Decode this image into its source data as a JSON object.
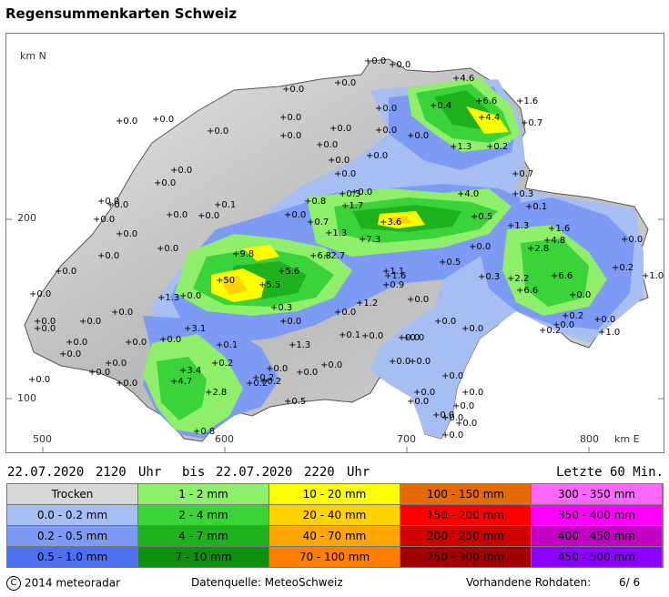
{
  "title": "Regensummenkarten Schweiz",
  "axis": {
    "km_n": "km N",
    "km_e": "km E",
    "y_ticks": [
      "200",
      "100"
    ],
    "x_ticks": [
      "500",
      "600",
      "700",
      "800"
    ]
  },
  "stations": [
    {
      "v": "+0.0"
    },
    {
      "v": "+0.0"
    },
    {
      "v": "+4.6"
    },
    {
      "v": "+0.0"
    },
    {
      "v": "+0.0"
    },
    {
      "v": "+6.6"
    },
    {
      "v": "+1.6"
    },
    {
      "v": "+0.0"
    },
    {
      "v": "+0.0"
    },
    {
      "v": "+0.0"
    },
    {
      "v": "+0.0"
    },
    {
      "v": "+0.4"
    },
    {
      "v": "+4.4"
    },
    {
      "v": "+0.7"
    },
    {
      "v": "+0.0"
    },
    {
      "v": "+0.0"
    },
    {
      "v": "+1.3"
    },
    {
      "v": "+0.2"
    },
    {
      "v": "+0.0"
    },
    {
      "v": "+0.0"
    },
    {
      "v": "+0.0"
    },
    {
      "v": "+0.7"
    },
    {
      "v": "+0.0"
    },
    {
      "v": "+0.0"
    },
    {
      "v": "+0.0"
    },
    {
      "v": "+0.0"
    },
    {
      "v": "+0.3"
    },
    {
      "v": "+4.0"
    },
    {
      "v": "+0.3"
    },
    {
      "v": "+0.1"
    },
    {
      "v": "+0.0"
    },
    {
      "v": "+0.1"
    },
    {
      "v": "+0.8"
    },
    {
      "v": "+1.7"
    },
    {
      "v": "+0.0"
    },
    {
      "v": "+0.0"
    },
    {
      "v": "+0.7"
    },
    {
      "v": "+3.6"
    },
    {
      "v": "+0.5"
    },
    {
      "v": "+1.3"
    },
    {
      "v": "+1.6"
    },
    {
      "v": "+0.0"
    },
    {
      "v": "+0.0"
    },
    {
      "v": "+1.3"
    },
    {
      "v": "+7.3"
    },
    {
      "v": "+0.0"
    },
    {
      "v": "+4.8"
    },
    {
      "v": "+2.8"
    },
    {
      "v": "+0.0"
    },
    {
      "v": "+9.8"
    },
    {
      "v": "+6.3"
    },
    {
      "v": "+2.7"
    },
    {
      "v": "+0.5"
    },
    {
      "v": "+0.2"
    },
    {
      "v": "+1.0"
    },
    {
      "v": "+5.6"
    },
    {
      "v": "+1.1"
    },
    {
      "v": "+1.6"
    },
    {
      "v": "+0.3"
    },
    {
      "v": "+2.2"
    },
    {
      "v": "+6.6"
    },
    {
      "v": "+50"
    },
    {
      "v": "+5.5"
    },
    {
      "v": "+0.9"
    },
    {
      "v": "+6.6"
    },
    {
      "v": "+0.0"
    },
    {
      "v": "+1.3"
    },
    {
      "v": "+1.2"
    },
    {
      "v": "+0.0"
    },
    {
      "v": "+0.0"
    },
    {
      "v": "+0.3"
    },
    {
      "v": "+0.0"
    },
    {
      "v": "+0.2"
    },
    {
      "v": "+0.0"
    },
    {
      "v": "+0.0"
    },
    {
      "v": "+0.0"
    },
    {
      "v": "+0.0"
    },
    {
      "v": "+3.1"
    },
    {
      "v": "+0.0"
    },
    {
      "v": "+0.1"
    },
    {
      "v": "+0.2"
    },
    {
      "v": "+1.0"
    },
    {
      "v": "+0.0"
    },
    {
      "v": "+0.1"
    },
    {
      "v": "+1.3"
    },
    {
      "v": "+0.0"
    },
    {
      "v": "+0.0"
    },
    {
      "v": "+0.0"
    },
    {
      "v": "+0.2"
    },
    {
      "v": "+0.0"
    },
    {
      "v": "+3.4"
    },
    {
      "v": "+0.2"
    },
    {
      "v": "+0.0"
    },
    {
      "v": "+0.0"
    },
    {
      "v": "+4.7"
    },
    {
      "v": "+0.2"
    },
    {
      "v": "+0.2"
    },
    {
      "v": "+0.0"
    },
    {
      "v": "+2.8"
    },
    {
      "v": "+0.5"
    },
    {
      "v": "+0.0"
    },
    {
      "v": "+0.0"
    },
    {
      "v": "+0.0"
    },
    {
      "v": "+0.8"
    },
    {
      "v": "+0.0"
    },
    {
      "v": "+0.0"
    },
    {
      "v": "+0.0"
    },
    {
      "v": "+0.0"
    },
    {
      "v": "+0.0"
    },
    {
      "v": "+0.0"
    },
    {
      "v": "+0.0"
    },
    {
      "v": "+0.0"
    },
    {
      "v": "+0.0"
    },
    {
      "v": "+0.0"
    },
    {
      "v": "+0.0"
    },
    {
      "v": "+0.0"
    },
    {
      "v": "+0.0"
    },
    {
      "v": "+0.0"
    },
    {
      "v": "+0.0"
    },
    {
      "v": "+0.0"
    },
    {
      "v": "+0.0"
    },
    {
      "v": "+0.0"
    },
    {
      "v": "+0.0"
    },
    {
      "v": "+0.0"
    },
    {
      "v": "+0.0"
    },
    {
      "v": "+0.0"
    },
    {
      "v": "+0.0"
    },
    {
      "v": "+0.0"
    },
    {
      "v": "+0.0"
    },
    {
      "v": "+0.0"
    },
    {
      "v": "+0.0"
    }
  ],
  "time": {
    "from_date": "22.07.2020",
    "from_time": "2120",
    "unit1": "Uhr",
    "bis": "bis",
    "to_date": "22.07.2020",
    "to_time": "2220",
    "unit2": "Uhr",
    "last": "Letzte 60 Min."
  },
  "legend": [
    {
      "label": "Trocken",
      "color": "#d7d7d7"
    },
    {
      "label": "0.0 - 0.2 mm",
      "color": "#a6bef2"
    },
    {
      "label": "0.2 - 0.5 mm",
      "color": "#7d9bf5"
    },
    {
      "label": "0.5 - 1.0 mm",
      "color": "#4d6ff2"
    },
    {
      "label": "1 - 2 mm",
      "color": "#8fee6a"
    },
    {
      "label": "2 - 4 mm",
      "color": "#3ad33a"
    },
    {
      "label": "4 - 7 mm",
      "color": "#1fb21f"
    },
    {
      "label": "7 - 10 mm",
      "color": "#0f8f0f"
    },
    {
      "label": "10 - 20 mm",
      "color": "#ffff00"
    },
    {
      "label": "20 - 40 mm",
      "color": "#ffd200"
    },
    {
      "label": "40 - 70 mm",
      "color": "#ffa600"
    },
    {
      "label": "70 - 100 mm",
      "color": "#ff7f00"
    },
    {
      "label": "100 - 150 mm",
      "color": "#e76a00"
    },
    {
      "label": "150 - 200 mm",
      "color": "#ff0000"
    },
    {
      "label": "200 - 250 mm",
      "color": "#d10000"
    },
    {
      "label": "250 - 300 mm",
      "color": "#a20000"
    },
    {
      "label": "300 - 350 mm",
      "color": "#ff66ff"
    },
    {
      "label": "350 - 400 mm",
      "color": "#ff00ff"
    },
    {
      "label": "400 - 450 mm",
      "color": "#c400c4"
    },
    {
      "label": "450 - 500 mm",
      "color": "#8b00ff"
    }
  ],
  "footer": {
    "copyright_symbol": "C",
    "copyright": "2014  meteoradar",
    "source": "Datenquelle: MeteoSchweiz",
    "raw_label": "Vorhandene Rohdaten:",
    "raw_value": "6/  6"
  }
}
